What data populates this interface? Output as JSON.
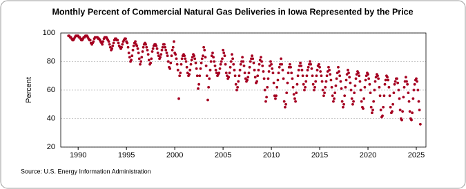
{
  "chart_data": {
    "type": "scatter",
    "title": "Monthly Percent of Commercial Natural Gas Deliveries in Iowa Represented by the Price",
    "y_label": "Percent",
    "source": "Source: U.S. Energy Information Administration",
    "color": "#a50021",
    "grid": true,
    "xlim": [
      1988.2,
      2026
    ],
    "xticks": [
      1990,
      1995,
      2000,
      2005,
      2010,
      2015,
      2020,
      2025
    ],
    "ylim": [
      20,
      100
    ],
    "yticks": [
      20,
      40,
      60,
      80,
      100
    ],
    "x": [
      1989,
      1989.08,
      1989.17,
      1989.25,
      1989.33,
      1989.42,
      1989.5,
      1989.58,
      1989.67,
      1989.75,
      1989.83,
      1989.92,
      1990,
      1990.08,
      1990.17,
      1990.25,
      1990.33,
      1990.42,
      1990.5,
      1990.58,
      1990.67,
      1990.75,
      1990.83,
      1990.92,
      1991,
      1991.08,
      1991.17,
      1991.25,
      1991.33,
      1991.42,
      1991.5,
      1991.58,
      1991.67,
      1991.75,
      1991.83,
      1991.92,
      1992,
      1992.08,
      1992.17,
      1992.25,
      1992.33,
      1992.42,
      1992.5,
      1992.58,
      1992.67,
      1992.75,
      1992.83,
      1992.92,
      1993,
      1993.08,
      1993.17,
      1993.25,
      1993.33,
      1993.42,
      1993.5,
      1993.58,
      1993.67,
      1993.75,
      1993.83,
      1993.92,
      1994,
      1994.08,
      1994.17,
      1994.25,
      1994.33,
      1994.42,
      1994.5,
      1994.58,
      1994.67,
      1994.75,
      1994.83,
      1994.92,
      1995,
      1995.08,
      1995.17,
      1995.25,
      1995.33,
      1995.42,
      1995.5,
      1995.58,
      1995.67,
      1995.75,
      1995.83,
      1995.92,
      1996,
      1996.08,
      1996.17,
      1996.25,
      1996.33,
      1996.42,
      1996.5,
      1996.58,
      1996.67,
      1996.75,
      1996.83,
      1996.92,
      1997,
      1997.08,
      1997.17,
      1997.25,
      1997.33,
      1997.42,
      1997.5,
      1997.58,
      1997.67,
      1997.75,
      1997.83,
      1997.92,
      1998,
      1998.08,
      1998.17,
      1998.25,
      1998.33,
      1998.42,
      1998.5,
      1998.58,
      1998.67,
      1998.75,
      1998.83,
      1998.92,
      1999,
      1999.08,
      1999.17,
      1999.25,
      1999.33,
      1999.42,
      1999.5,
      1999.58,
      1999.67,
      1999.75,
      1999.83,
      1999.92,
      2000,
      2000.08,
      2000.17,
      2000.25,
      2000.33,
      2000.42,
      2000.5,
      2000.58,
      2000.67,
      2000.75,
      2000.83,
      2000.92,
      2001,
      2001.08,
      2001.17,
      2001.25,
      2001.33,
      2001.42,
      2001.5,
      2001.58,
      2001.67,
      2001.75,
      2001.83,
      2001.92,
      2002,
      2002.08,
      2002.17,
      2002.25,
      2002.33,
      2002.42,
      2002.5,
      2002.58,
      2002.67,
      2002.75,
      2002.83,
      2002.92,
      2003,
      2003.08,
      2003.17,
      2003.25,
      2003.33,
      2003.42,
      2003.5,
      2003.58,
      2003.67,
      2003.75,
      2003.83,
      2003.92,
      2004,
      2004.08,
      2004.17,
      2004.25,
      2004.33,
      2004.42,
      2004.5,
      2004.58,
      2004.67,
      2004.75,
      2004.83,
      2004.92,
      2005,
      2005.08,
      2005.17,
      2005.25,
      2005.33,
      2005.42,
      2005.5,
      2005.58,
      2005.67,
      2005.75,
      2005.83,
      2005.92,
      2006,
      2006.08,
      2006.17,
      2006.25,
      2006.33,
      2006.42,
      2006.5,
      2006.58,
      2006.67,
      2006.75,
      2006.83,
      2006.92,
      2007,
      2007.08,
      2007.17,
      2007.25,
      2007.33,
      2007.42,
      2007.5,
      2007.58,
      2007.67,
      2007.75,
      2007.83,
      2007.92,
      2008,
      2008.08,
      2008.17,
      2008.25,
      2008.33,
      2008.42,
      2008.5,
      2008.58,
      2008.67,
      2008.75,
      2008.83,
      2008.92,
      2009,
      2009.08,
      2009.17,
      2009.25,
      2009.33,
      2009.42,
      2009.5,
      2009.58,
      2009.67,
      2009.75,
      2009.83,
      2009.92,
      2010,
      2010.08,
      2010.17,
      2010.25,
      2010.33,
      2010.42,
      2010.5,
      2010.58,
      2010.67,
      2010.75,
      2010.83,
      2010.92,
      2011,
      2011.08,
      2011.17,
      2011.25,
      2011.33,
      2011.42,
      2011.5,
      2011.58,
      2011.67,
      2011.75,
      2011.83,
      2011.92,
      2012,
      2012.08,
      2012.17,
      2012.25,
      2012.33,
      2012.42,
      2012.5,
      2012.58,
      2012.67,
      2012.75,
      2012.83,
      2012.92,
      2013,
      2013.08,
      2013.17,
      2013.25,
      2013.33,
      2013.42,
      2013.5,
      2013.58,
      2013.67,
      2013.75,
      2013.83,
      2013.92,
      2014,
      2014.08,
      2014.17,
      2014.25,
      2014.33,
      2014.42,
      2014.5,
      2014.58,
      2014.67,
      2014.75,
      2014.83,
      2014.92,
      2015,
      2015.08,
      2015.17,
      2015.25,
      2015.33,
      2015.42,
      2015.5,
      2015.58,
      2015.67,
      2015.75,
      2015.83,
      2015.92,
      2016,
      2016.08,
      2016.17,
      2016.25,
      2016.33,
      2016.42,
      2016.5,
      2016.58,
      2016.67,
      2016.75,
      2016.83,
      2016.92,
      2017,
      2017.08,
      2017.17,
      2017.25,
      2017.33,
      2017.42,
      2017.5,
      2017.58,
      2017.67,
      2017.75,
      2017.83,
      2017.92,
      2018,
      2018.08,
      2018.17,
      2018.25,
      2018.33,
      2018.42,
      2018.5,
      2018.58,
      2018.67,
      2018.75,
      2018.83,
      2018.92,
      2019,
      2019.08,
      2019.17,
      2019.25,
      2019.33,
      2019.42,
      2019.5,
      2019.58,
      2019.67,
      2019.75,
      2019.83,
      2019.92,
      2020,
      2020.08,
      2020.17,
      2020.25,
      2020.33,
      2020.42,
      2020.5,
      2020.58,
      2020.67,
      2020.75,
      2020.83,
      2020.92,
      2021,
      2021.08,
      2021.17,
      2021.25,
      2021.33,
      2021.42,
      2021.5,
      2021.58,
      2021.67,
      2021.75,
      2021.83,
      2021.92,
      2022,
      2022.08,
      2022.17,
      2022.25,
      2022.33,
      2022.42,
      2022.5,
      2022.58,
      2022.67,
      2022.75,
      2022.83,
      2022.92,
      2023,
      2023.08,
      2023.17,
      2023.25,
      2023.33,
      2023.42,
      2023.5,
      2023.58,
      2023.67,
      2023.75,
      2023.83,
      2023.92,
      2024,
      2024.08,
      2024.17,
      2024.25,
      2024.33,
      2024.42,
      2024.5,
      2024.58,
      2024.67,
      2024.75,
      2024.83,
      2024.92,
      2025,
      2025.08,
      2025.17,
      2025.25,
      2025.33,
      2025.42
    ],
    "values": [
      98,
      98,
      97,
      97,
      96,
      95,
      95,
      96,
      97,
      98,
      98,
      98,
      98,
      97,
      97,
      96,
      95,
      95,
      96,
      97,
      97,
      98,
      98,
      98,
      97,
      96,
      95,
      95,
      93,
      92,
      93,
      94,
      96,
      97,
      97,
      97,
      97,
      96,
      96,
      95,
      94,
      93,
      92,
      94,
      96,
      97,
      97,
      97,
      96,
      95,
      94,
      92,
      90,
      88,
      89,
      91,
      93,
      95,
      96,
      96,
      95,
      95,
      93,
      91,
      90,
      89,
      90,
      92,
      94,
      95,
      96,
      96,
      94,
      93,
      90,
      86,
      83,
      80,
      81,
      84,
      88,
      91,
      93,
      94,
      92,
      91,
      89,
      86,
      82,
      78,
      80,
      83,
      87,
      90,
      92,
      93,
      92,
      90,
      88,
      85,
      81,
      78,
      79,
      82,
      87,
      89,
      91,
      92,
      92,
      91,
      89,
      86,
      84,
      82,
      83,
      85,
      88,
      90,
      92,
      92,
      90,
      88,
      86,
      84,
      80,
      76,
      75,
      79,
      84,
      88,
      90,
      94,
      86,
      85,
      82,
      78,
      74,
      54,
      70,
      72,
      78,
      82,
      84,
      85,
      84,
      82,
      80,
      76,
      72,
      70,
      71,
      74,
      78,
      81,
      83,
      85,
      84,
      82,
      79,
      75,
      70,
      61,
      64,
      70,
      75,
      79,
      82,
      84,
      90,
      88,
      83,
      77,
      70,
      53,
      62,
      68,
      74,
      80,
      84,
      86,
      83,
      80,
      77,
      74,
      72,
      70,
      71,
      72,
      75,
      78,
      80,
      82,
      88,
      86,
      84,
      78,
      72,
      70,
      68,
      69,
      72,
      76,
      80,
      85,
      82,
      78,
      74,
      70,
      64,
      60,
      62,
      66,
      70,
      74,
      78,
      80,
      83,
      80,
      77,
      72,
      68,
      66,
      67,
      69,
      72,
      76,
      80,
      82,
      84,
      82,
      79,
      74,
      69,
      65,
      66,
      70,
      74,
      78,
      81,
      83,
      80,
      77,
      73,
      68,
      60,
      52,
      55,
      62,
      68,
      73,
      77,
      80,
      78,
      75,
      72,
      65,
      56,
      54,
      56,
      62,
      67,
      72,
      76,
      78,
      82,
      78,
      74,
      68,
      52,
      48,
      50,
      58,
      65,
      72,
      76,
      78,
      76,
      72,
      68,
      62,
      57,
      54,
      52,
      58,
      64,
      70,
      74,
      77,
      79,
      77,
      74,
      70,
      64,
      60,
      62,
      66,
      70,
      74,
      76,
      78,
      80,
      78,
      75,
      70,
      64,
      60,
      62,
      66,
      70,
      74,
      77,
      78,
      76,
      73,
      70,
      66,
      60,
      56,
      58,
      62,
      66,
      70,
      73,
      76,
      74,
      71,
      67,
      62,
      56,
      52,
      54,
      58,
      63,
      68,
      72,
      76,
      73,
      70,
      66,
      61,
      52,
      48,
      50,
      56,
      62,
      67,
      71,
      74,
      72,
      69,
      65,
      60,
      54,
      50,
      52,
      58,
      63,
      68,
      71,
      73,
      72,
      70,
      66,
      60,
      52,
      48,
      47,
      54,
      62,
      67,
      70,
      72,
      71,
      68,
      64,
      58,
      48,
      44,
      46,
      52,
      60,
      66,
      69,
      71,
      70,
      68,
      62,
      56,
      46,
      41,
      42,
      48,
      56,
      64,
      67,
      70,
      69,
      67,
      62,
      56,
      48,
      44,
      45,
      50,
      58,
      64,
      66,
      68,
      68,
      65,
      60,
      54,
      46,
      40,
      39,
      45,
      55,
      62,
      66,
      69,
      66,
      64,
      58,
      52,
      45,
      40,
      39,
      44,
      54,
      60,
      64,
      67,
      68,
      66,
      60,
      52,
      46,
      36
    ]
  }
}
